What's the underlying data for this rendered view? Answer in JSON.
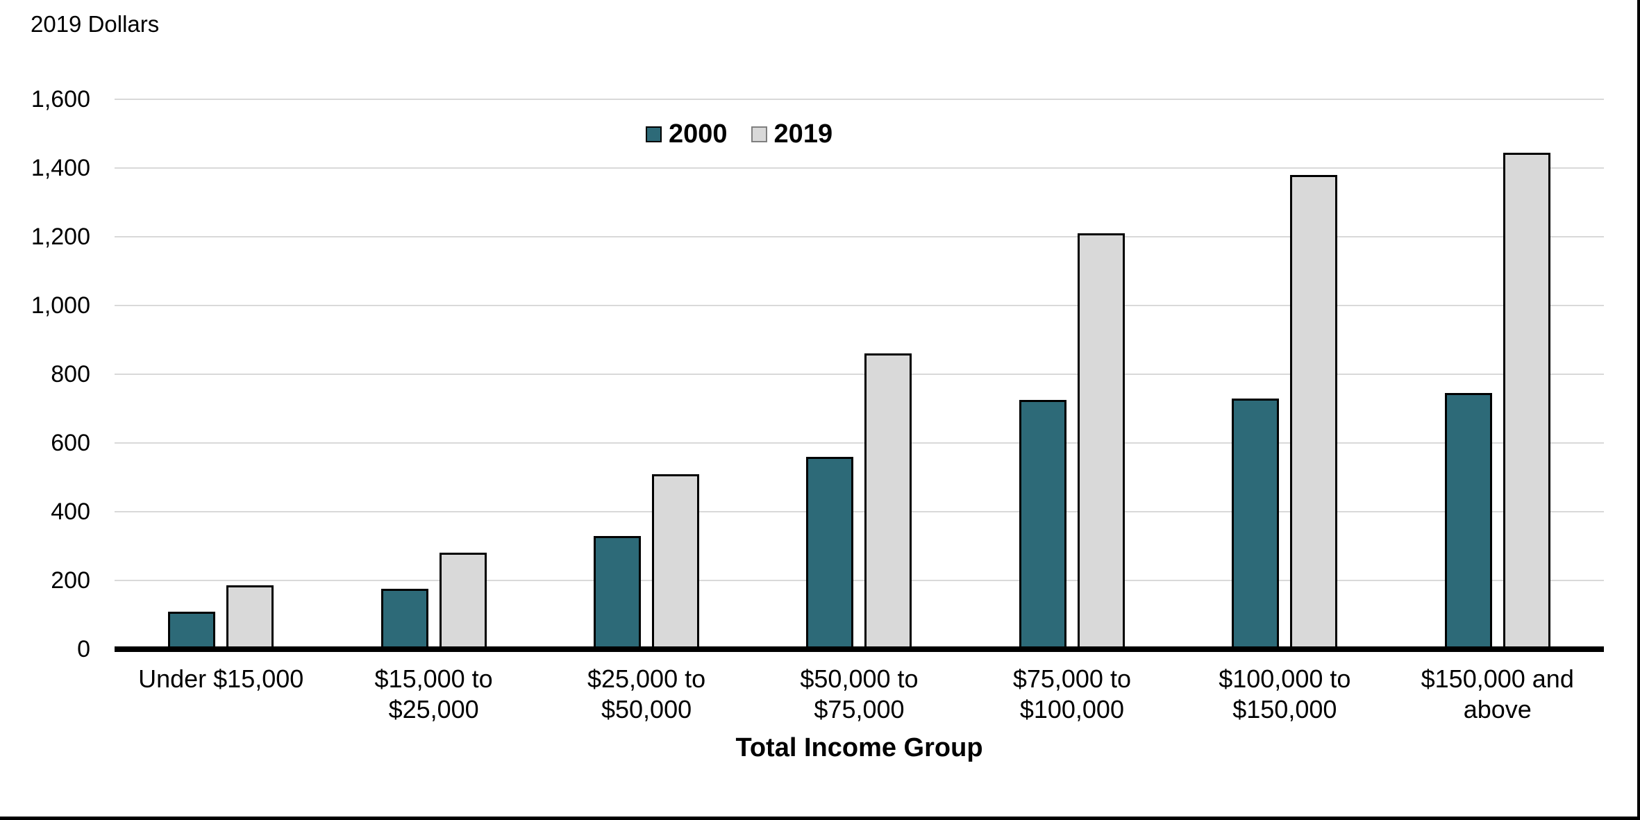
{
  "chart_data": {
    "type": "bar",
    "ylabel": "2019 Dollars",
    "xlabel": "Total Income Group",
    "categories": [
      "Under $15,000",
      "$15,000 to\n$25,000",
      "$25,000 to\n$50,000",
      "$50,000 to\n$75,000",
      "$75,000 to\n$100,000",
      "$100,000 to\n$150,000",
      "$150,000 and\nabove"
    ],
    "series": [
      {
        "name": "2000",
        "color": "#2D6A78",
        "bar_border_color": "#000000",
        "swatch_border_color": "#000000",
        "values": [
          110,
          175,
          330,
          560,
          725,
          730,
          745
        ]
      },
      {
        "name": "2019",
        "color": "#D9D9D9",
        "bar_border_color": "#000000",
        "swatch_border_color": "#7F7F7F",
        "values": [
          185,
          280,
          510,
          860,
          1210,
          1380,
          1445
        ]
      }
    ],
    "ylim": [
      0,
      1600
    ],
    "ytick_interval": 200,
    "ytick_labels": [
      "0",
      "200",
      "400",
      "600",
      "800",
      "1,000",
      "1,200",
      "1,400",
      "1,600"
    ],
    "grid": true,
    "gridline_color": "#D9D9D9",
    "axis_line_color": "#000000",
    "legend_position": "top-center"
  }
}
